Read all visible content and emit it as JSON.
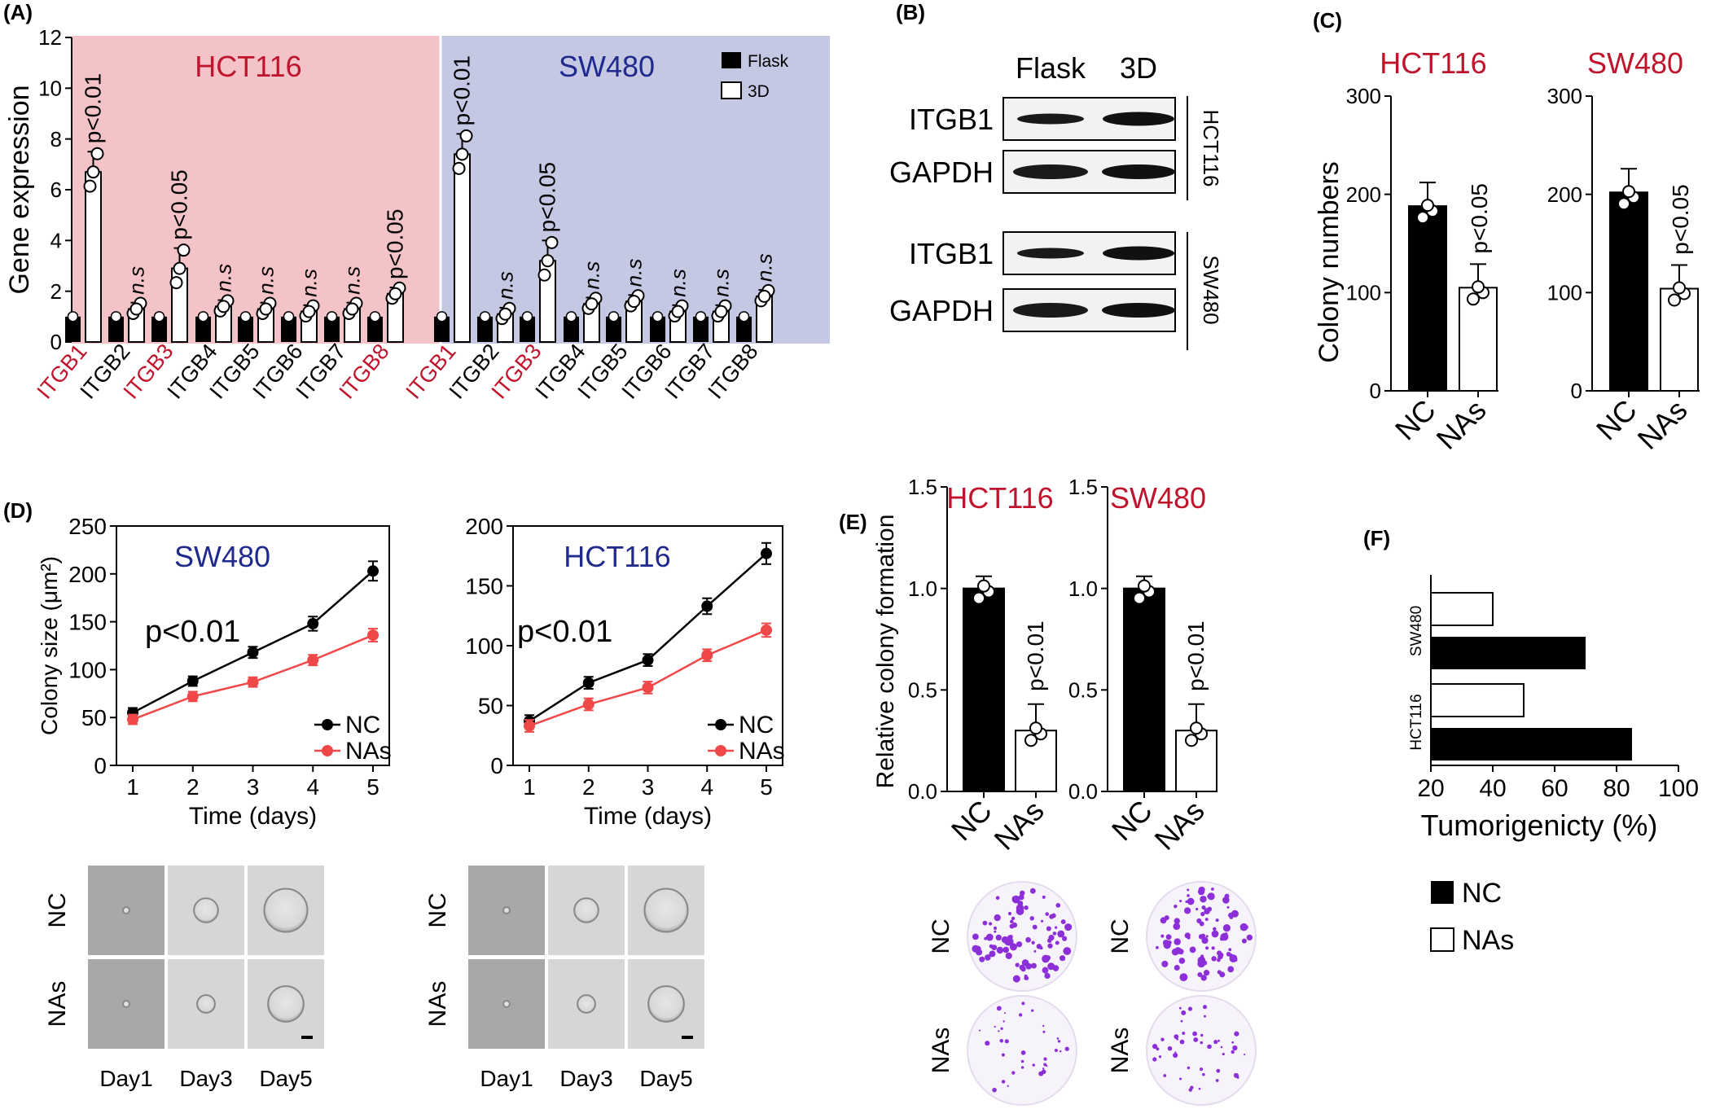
{
  "panel_labels": {
    "a": "(A)",
    "b": "(B)",
    "c": "(C)",
    "d": "(D)",
    "e": "(E)",
    "f": "(F)"
  },
  "legend": {
    "flask": "Flask",
    "d3": "3D",
    "nc": "NC",
    "nas": "NAs"
  },
  "colors": {
    "red_bg": "#f3c3c8",
    "blue_bg": "#c5c8e3",
    "red_text": "#c0142d",
    "blue_text": "#1f2a8c",
    "nas_line": "#f04848"
  },
  "chart_data": [
    {
      "id": "A",
      "type": "bar",
      "ylabel": "Gene expression",
      "ylim": [
        0,
        12
      ],
      "yticks": [
        0,
        2,
        4,
        6,
        8,
        10,
        12
      ],
      "groups": [
        {
          "title": "HCT116",
          "legend": [
            "Flask",
            "3D"
          ],
          "categories": [
            "ITGB1",
            "ITGB2",
            "ITGB3",
            "ITGB4",
            "ITGB5",
            "ITGB6",
            "ITGB7",
            "ITGB8"
          ],
          "highlight": [
            true,
            false,
            true,
            false,
            false,
            false,
            false,
            true
          ],
          "series": [
            {
              "name": "Flask",
              "values": [
                1,
                1,
                1,
                1,
                1,
                1,
                1,
                1
              ]
            },
            {
              "name": "3D",
              "values": [
                6.7,
                1.3,
                2.9,
                1.4,
                1.3,
                1.2,
                1.3,
                1.9
              ]
            }
          ],
          "annotations": [
            "p<0.01",
            "n.s",
            "p<0.05",
            "n.s",
            "n.s",
            "n.s",
            "n.s",
            "p<0.05"
          ]
        },
        {
          "title": "SW480",
          "categories": [
            "ITGB1",
            "ITGB2",
            "ITGB3",
            "ITGB4",
            "ITGB5",
            "ITGB6",
            "ITGB7",
            "ITGB8"
          ],
          "highlight": [
            true,
            false,
            true,
            false,
            false,
            false,
            false,
            false
          ],
          "series": [
            {
              "name": "Flask",
              "values": [
                1,
                1,
                1,
                1,
                1,
                1,
                1,
                1
              ]
            },
            {
              "name": "3D",
              "values": [
                7.4,
                1.1,
                3.2,
                1.5,
                1.6,
                1.2,
                1.2,
                1.8
              ]
            }
          ],
          "annotations": [
            "p<0.01",
            "n.s",
            "p<0.05",
            "n.s",
            "n.s",
            "n.s",
            "n.s",
            "n.s"
          ]
        }
      ]
    },
    {
      "id": "C",
      "type": "bar",
      "ylabel": "Colony numbers",
      "ylim": [
        0,
        300
      ],
      "yticks": [
        0,
        100,
        200,
        300
      ],
      "charts": [
        {
          "title": "HCT116",
          "categories": [
            "NC",
            "NAs"
          ],
          "values": [
            188,
            105
          ],
          "annotation": "p<0.05"
        },
        {
          "title": "SW480",
          "categories": [
            "NC",
            "NAs"
          ],
          "values": [
            202,
            104
          ],
          "annotation": "p<0.05"
        }
      ]
    },
    {
      "id": "D",
      "type": "line",
      "ylabel": "Colony size (μm²)",
      "xlabel": "Time (days)",
      "x": [
        1,
        2,
        3,
        4,
        5
      ],
      "charts": [
        {
          "title": "SW480",
          "ylim": [
            0,
            250
          ],
          "yticks": [
            0,
            50,
            100,
            150,
            200,
            250
          ],
          "annotation": "p<0.01",
          "series": [
            {
              "name": "NC",
              "values": [
                55,
                88,
                118,
                148,
                203
              ]
            },
            {
              "name": "NAs",
              "values": [
                48,
                72,
                87,
                110,
                136
              ]
            }
          ]
        },
        {
          "title": "HCT116",
          "ylim": [
            0,
            200
          ],
          "yticks": [
            0,
            50,
            100,
            150,
            200
          ],
          "annotation": "p<0.01",
          "series": [
            {
              "name": "NC",
              "values": [
                37,
                69,
                88,
                133,
                177
              ]
            },
            {
              "name": "NAs",
              "values": [
                33,
                51,
                65,
                92,
                113
              ]
            }
          ]
        }
      ]
    },
    {
      "id": "E",
      "type": "bar",
      "ylabel": "Relative colony formation",
      "ylim": [
        0,
        1.5
      ],
      "yticks": [
        "0.0",
        "0.5",
        "1.0",
        "1.5"
      ],
      "charts": [
        {
          "title": "HCT116",
          "categories": [
            "NC",
            "NAs"
          ],
          "values": [
            1.0,
            0.3
          ],
          "annotation": "p<0.01"
        },
        {
          "title": "SW480",
          "categories": [
            "NC",
            "NAs"
          ],
          "values": [
            1.0,
            0.3
          ],
          "annotation": "p<0.01"
        }
      ]
    },
    {
      "id": "F",
      "type": "bar",
      "orientation": "horizontal",
      "xlabel": "Tumorigenicty (%)",
      "xlim": [
        20,
        100
      ],
      "xticks": [
        20,
        40,
        60,
        80,
        100
      ],
      "categories": [
        "SW480",
        "HCT116"
      ],
      "series": [
        {
          "name": "NAs",
          "values": [
            40,
            50
          ]
        },
        {
          "name": "NC",
          "values": [
            70,
            85
          ]
        }
      ]
    }
  ],
  "blot": {
    "columns": [
      "Flask",
      "3D"
    ],
    "rows": [
      "ITGB1",
      "GAPDH",
      "ITGB1",
      "GAPDH"
    ],
    "cell_lines": [
      "HCT116",
      "SW480"
    ]
  },
  "micro": {
    "rows": [
      "NC",
      "NAs"
    ],
    "days": [
      "Day1",
      "Day3",
      "Day5"
    ]
  },
  "plates": {
    "rows": [
      "NC",
      "NAs"
    ]
  }
}
